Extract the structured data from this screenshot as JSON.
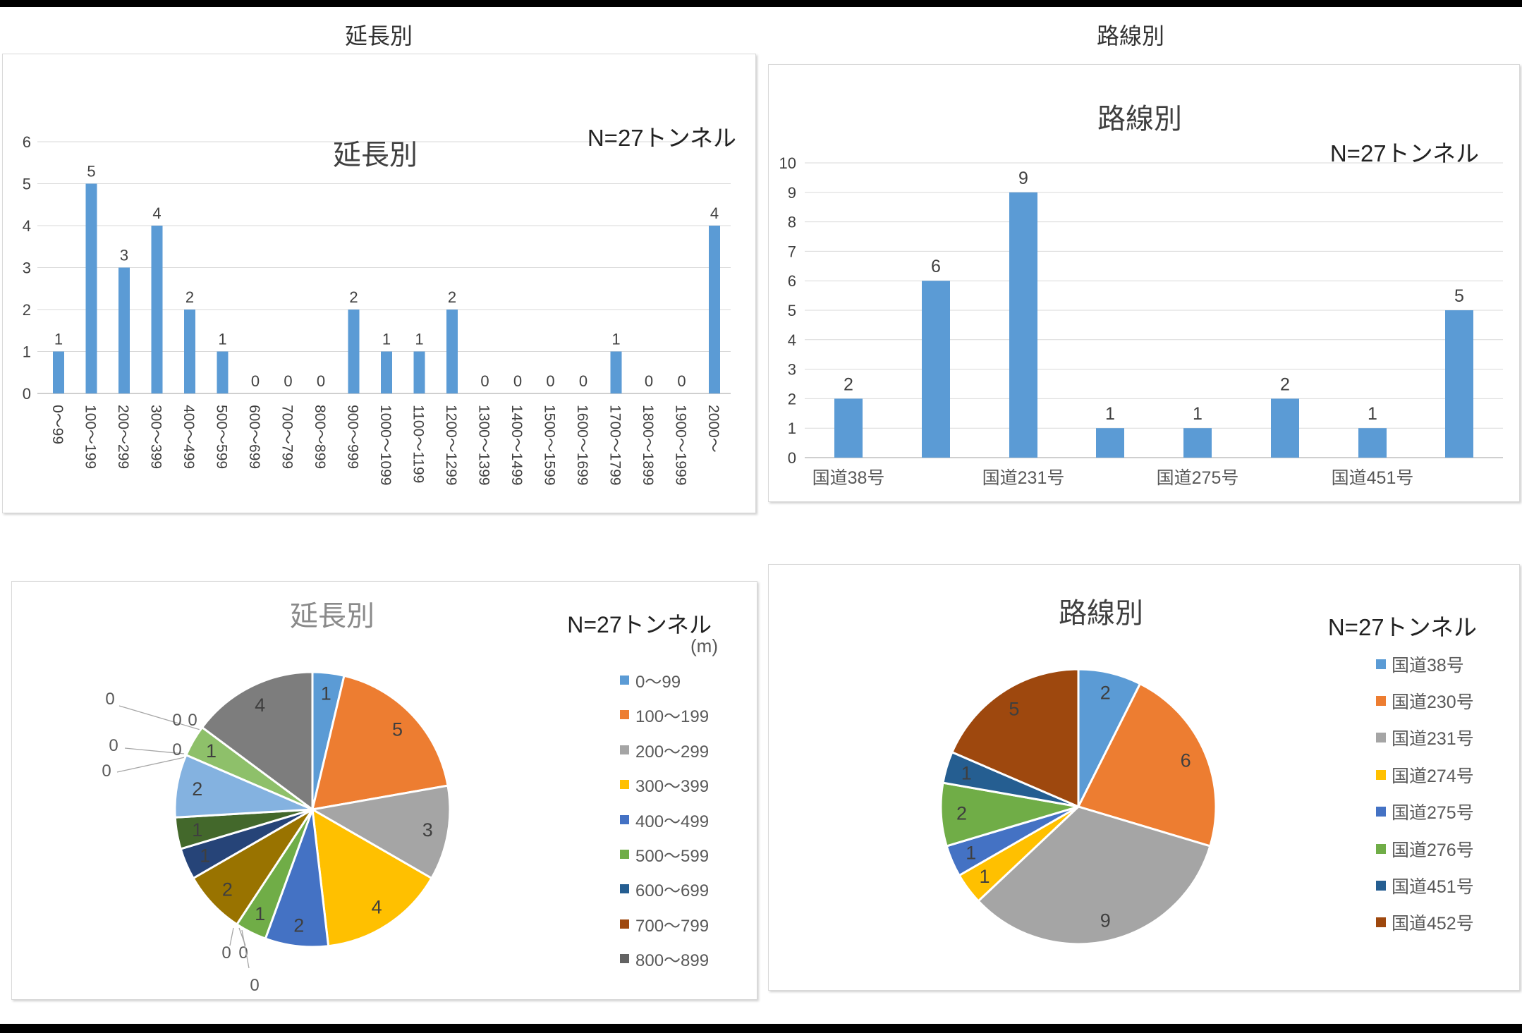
{
  "page": {
    "header_left": "延長別",
    "header_right": "路線別"
  },
  "colors": {
    "bar": "#5B9BD5",
    "grid": "#D9D9D9",
    "axis": "#BFBFBF",
    "tick_text": "#404040",
    "value_label": "#404040",
    "pie_label": "#3f3f3f",
    "zero_label": "#595959",
    "leader_line": "#A6A6A6"
  },
  "chart_data": [
    {
      "id": "bar-length",
      "type": "bar",
      "title": "延長別",
      "note": "N=27トンネル",
      "categories": [
        "0～99",
        "100～199",
        "200～299",
        "300～399",
        "400～499",
        "500～599",
        "600～699",
        "700～799",
        "800～899",
        "900～999",
        "1000～1099",
        "1100～1199",
        "1200～1299",
        "1300～1399",
        "1400～1499",
        "1500～1599",
        "1600～1699",
        "1700～1799",
        "1800～1899",
        "1900～1999",
        "2000～"
      ],
      "values": [
        1,
        5,
        3,
        4,
        2,
        1,
        0,
        0,
        0,
        2,
        1,
        1,
        2,
        0,
        0,
        0,
        0,
        1,
        0,
        0,
        4
      ],
      "ylabel": "",
      "ylim": [
        0,
        6
      ],
      "ytick_step": 1,
      "grid": true,
      "bar_color": "#5B9BD5",
      "data_labels": true
    },
    {
      "id": "bar-route",
      "type": "bar",
      "title": "路線別",
      "note": "N=27トンネル",
      "categories": [
        "国道38号",
        "国道230号",
        "国道231号",
        "国道274号",
        "国道275号",
        "国道276号",
        "国道451号",
        "国道452号"
      ],
      "axis_labels": [
        "国道38号",
        "",
        "国道231号",
        "",
        "国道275号",
        "",
        "国道451号",
        ""
      ],
      "values": [
        2,
        6,
        9,
        1,
        1,
        2,
        1,
        5
      ],
      "ylabel": "",
      "ylim": [
        0,
        10
      ],
      "ytick_step": 1,
      "grid": true,
      "bar_color": "#5B9BD5",
      "data_labels": true
    },
    {
      "id": "pie-length",
      "type": "pie",
      "title": "延長別",
      "note": "N=27トンネル",
      "unit_label": "(m)",
      "categories": [
        "0～99",
        "100～199",
        "200～299",
        "300～399",
        "400～499",
        "500～599",
        "600～699",
        "700～799",
        "800～899",
        "900～999",
        "1000～1099",
        "1100～1199",
        "1200～1299",
        "1300～1399",
        "1400～1499",
        "1500～1599",
        "1600～1699",
        "1700～1799",
        "1800～1899",
        "1900～1999",
        "2000～"
      ],
      "values": [
        1,
        5,
        3,
        4,
        2,
        1,
        0,
        0,
        0,
        2,
        1,
        1,
        2,
        0,
        0,
        0,
        0,
        1,
        0,
        0,
        4
      ],
      "colors": [
        "#5B9BD5",
        "#ED7D31",
        "#A5A5A5",
        "#FFC000",
        "#4472C4",
        "#70AD47",
        "#255E91",
        "#9E480E",
        "#636363",
        "#997300",
        "#264478",
        "#43682B",
        "#84B2E0",
        "#F1975A",
        "#C9C9C9",
        "#FFCD33",
        "#698ED0",
        "#8EC06A",
        "#2E75B6",
        "#C55A11",
        "#7D7D7D"
      ],
      "legend_count": 9,
      "legend_position": "right",
      "data_labels": true
    },
    {
      "id": "pie-route",
      "type": "pie",
      "title": "路線別",
      "note": "N=27トンネル",
      "categories": [
        "国道38号",
        "国道230号",
        "国道231号",
        "国道274号",
        "国道275号",
        "国道276号",
        "国道451号",
        "国道452号"
      ],
      "values": [
        2,
        6,
        9,
        1,
        1,
        2,
        1,
        5
      ],
      "colors": [
        "#5B9BD5",
        "#ED7D31",
        "#A5A5A5",
        "#FFC000",
        "#4472C4",
        "#70AD47",
        "#255E91",
        "#9E480E"
      ],
      "legend_count": 8,
      "legend_position": "right",
      "data_labels": true
    }
  ]
}
